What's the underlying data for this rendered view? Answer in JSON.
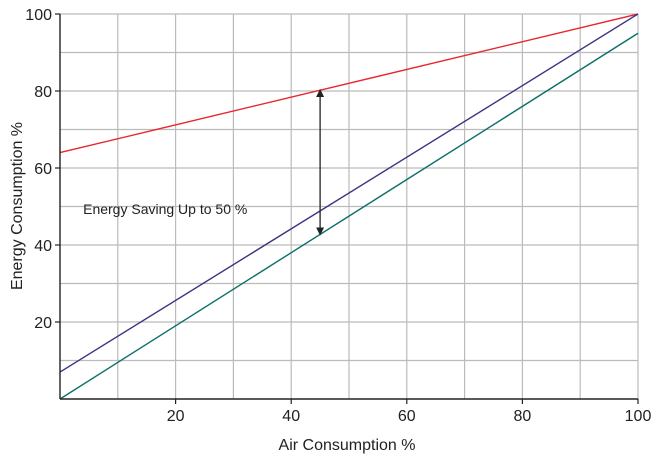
{
  "chart_data": {
    "type": "line",
    "title": "",
    "xlabel": "Air Consumption %",
    "ylabel": "Energy Consumption %",
    "xlim": [
      0,
      100
    ],
    "ylim": [
      0,
      100
    ],
    "x_ticks": [
      20,
      40,
      60,
      80,
      100
    ],
    "y_ticks": [
      20,
      40,
      60,
      80,
      100
    ],
    "grid": true,
    "grid_minor_step": 10,
    "series": [
      {
        "color": "#e8262e",
        "x": [
          0,
          100
        ],
        "y": [
          64,
          100
        ]
      },
      {
        "color": "#3d3380",
        "x": [
          0,
          100
        ],
        "y": [
          7,
          100
        ]
      },
      {
        "color": "#0d7068",
        "x": [
          0,
          100
        ],
        "y": [
          0,
          95
        ]
      }
    ],
    "annotation": {
      "text": "Energy Saving Up to 50 %",
      "text_x": 4,
      "text_y": 48,
      "arrow_x": 45,
      "arrow_y_from": 43,
      "arrow_y_to": 80,
      "color": "#222222"
    },
    "colors": {
      "grid": "#bbbbbb",
      "axis": "#222222",
      "text": "#222222"
    }
  }
}
